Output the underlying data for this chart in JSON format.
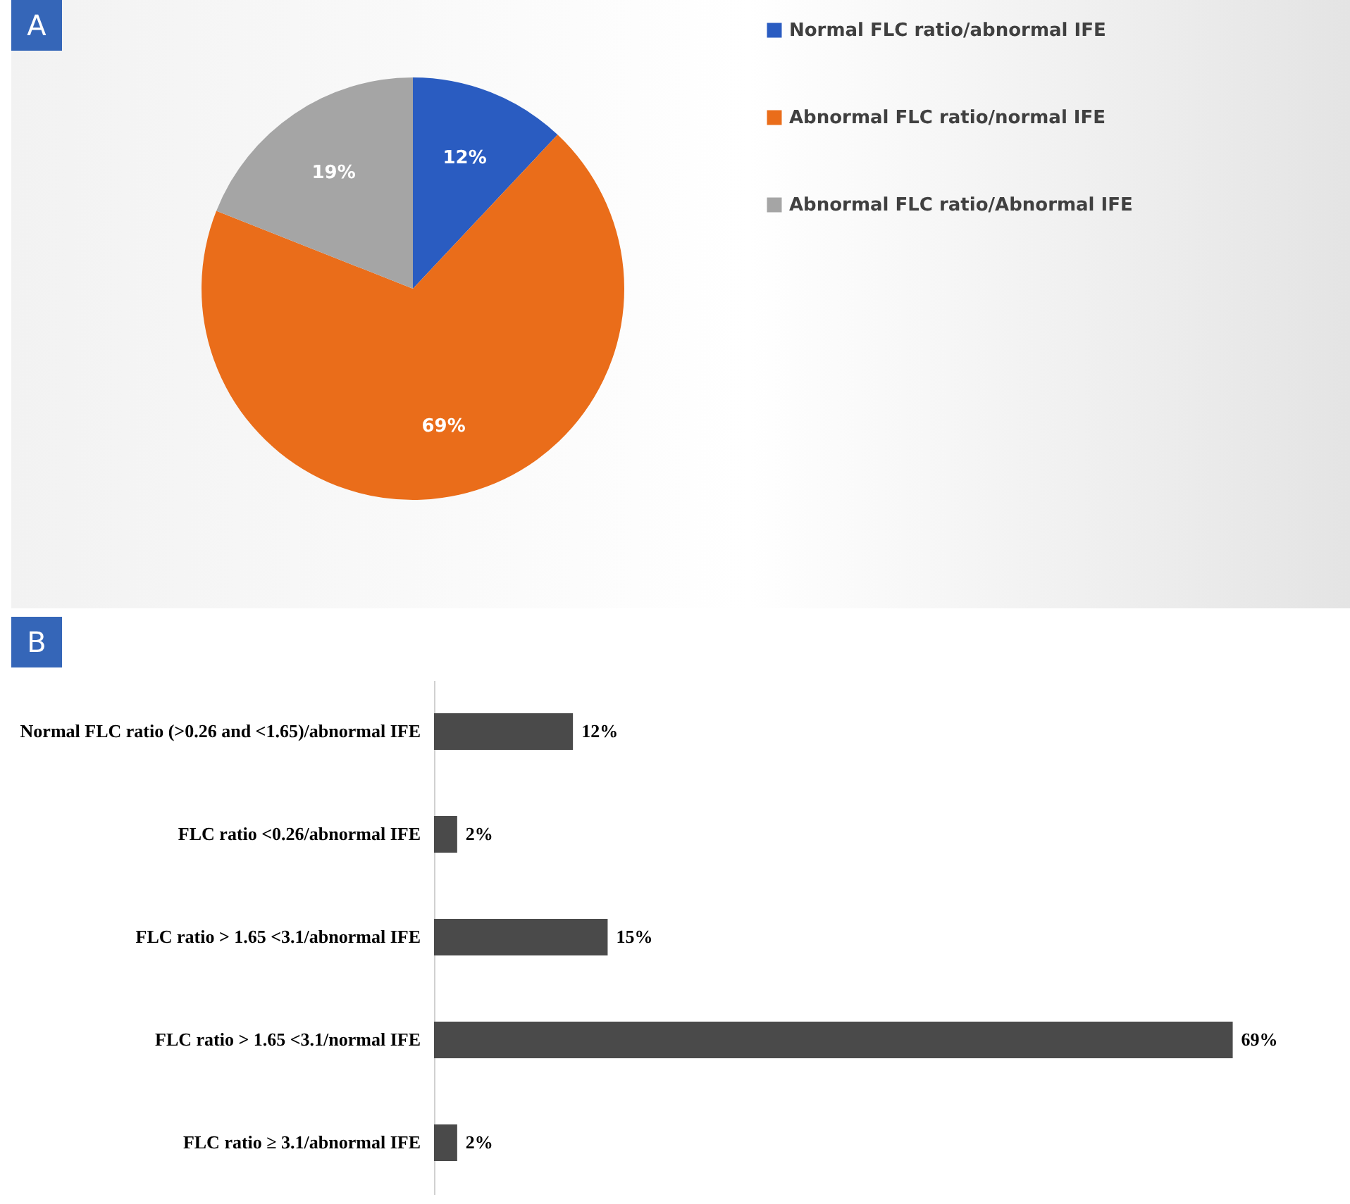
{
  "chart_data": [
    {
      "type": "pie",
      "title": "A",
      "categories": [
        "Normal FLC ratio/abnormal IFE",
        "Abnormal FLC ratio/normal IFE",
        "Abnormal FLC ratio/Abnormal IFE"
      ],
      "values": [
        12,
        69,
        19
      ],
      "colors": [
        "#2a5cc1",
        "#ea6d1a",
        "#a5a5a5"
      ],
      "value_labels": [
        "12%",
        "69%",
        "19%"
      ],
      "legend": "right"
    },
    {
      "type": "bar",
      "orientation": "horizontal",
      "title": "B",
      "categories": [
        "Normal FLC ratio (>0.26 and <1.65)/abnormal IFE",
        "FLC ratio <0.26/abnormal IFE",
        "FLC ratio > 1.65 <3.1/abnormal IFE",
        "FLC ratio > 1.65 <3.1/normal IFE",
        "FLC ratio ≥ 3.1/abnormal IFE"
      ],
      "values": [
        12,
        2,
        15,
        69,
        2
      ],
      "color": "#4a4a4a",
      "value_labels": [
        "12%",
        "2%",
        "15%",
        "69%",
        "2%"
      ]
    }
  ]
}
